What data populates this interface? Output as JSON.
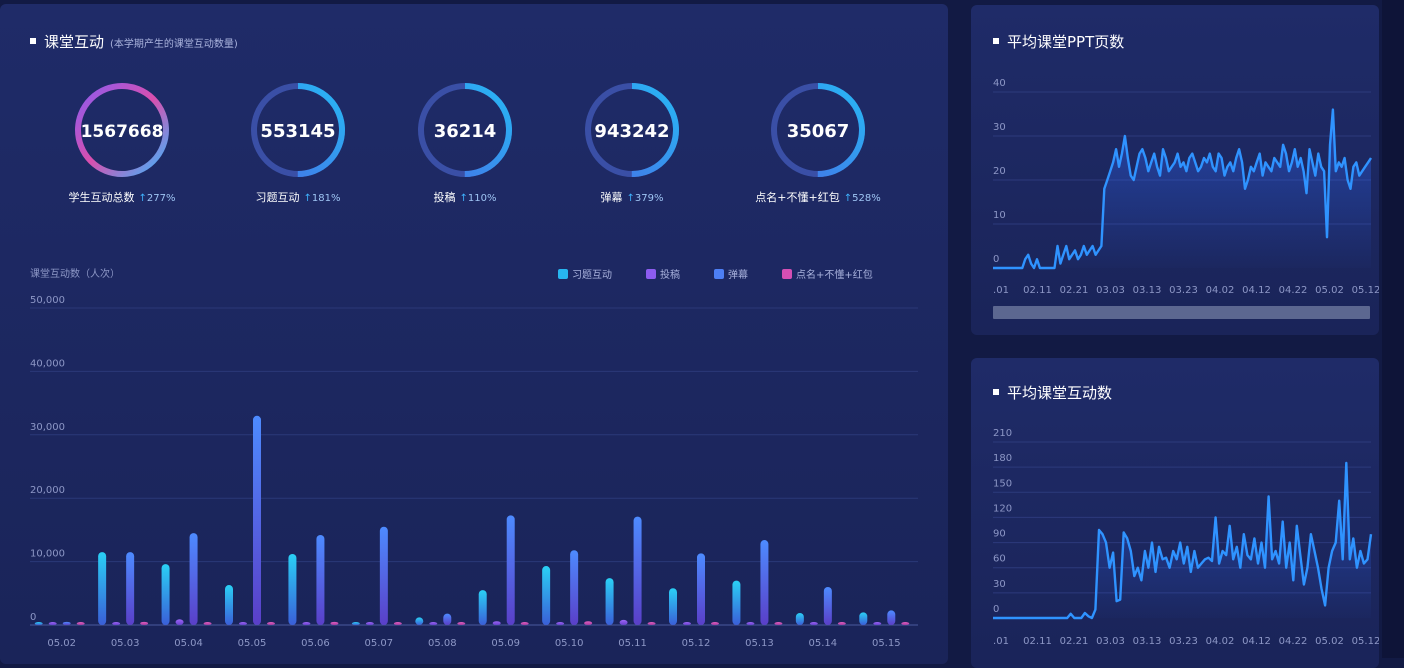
{
  "main": {
    "title": "课堂互动",
    "subtitle": "(本学期产生的课堂互动数量)",
    "kpis": [
      {
        "value": "1567668",
        "label": "学生互动总数",
        "pct": "277%"
      },
      {
        "value": "553145",
        "label": "习题互动",
        "pct": "181%"
      },
      {
        "value": "36214",
        "label": "投稿",
        "pct": "110%"
      },
      {
        "value": "943242",
        "label": "弹幕",
        "pct": "379%"
      },
      {
        "value": "35067",
        "label": "点名+不懂+红包",
        "pct": "528%"
      }
    ]
  },
  "side": {
    "ppt_title": "平均课堂PPT页数",
    "interact_title": "平均课堂互动数"
  },
  "colors": {
    "series1": "#27b6f0",
    "series2": "#8c5cf0",
    "series3": "#4d7ff5",
    "series4": "#d44fb4",
    "line": "#2f93ff"
  },
  "chart_data": [
    {
      "type": "bar",
      "title": "",
      "ylabel": "课堂互动数（人次）",
      "ylim": [
        0,
        50000
      ],
      "yticks": [
        "0",
        "10,000",
        "20,000",
        "30,000",
        "40,000",
        "50,000"
      ],
      "categories": [
        "05.02",
        "05.03",
        "05.04",
        "05.05",
        "05.06",
        "05.07",
        "05.08",
        "05.09",
        "05.10",
        "05.11",
        "05.12",
        "05.13",
        "05.14",
        "05.15"
      ],
      "legend": "top-right",
      "series": [
        {
          "name": "习题互动",
          "values": [
            200,
            11500,
            9600,
            6300,
            11200,
            400,
            1200,
            5500,
            9300,
            7400,
            5800,
            7000,
            1900,
            2000
          ]
        },
        {
          "name": "投稿",
          "values": [
            100,
            200,
            900,
            300,
            200,
            100,
            100,
            600,
            400,
            800,
            200,
            200,
            100,
            100
          ]
        },
        {
          "name": "弹幕",
          "values": [
            500,
            11500,
            14500,
            33000,
            14200,
            15500,
            1800,
            17300,
            11800,
            17100,
            11300,
            13400,
            6000,
            2300
          ]
        },
        {
          "name": "点名+不懂+红包",
          "values": [
            100,
            500,
            400,
            300,
            500,
            200,
            100,
            400,
            600,
            400,
            200,
            400,
            100,
            100
          ]
        }
      ]
    },
    {
      "type": "line",
      "title": "平均课堂PPT页数",
      "ylim": [
        0,
        40
      ],
      "yticks": [
        "0",
        "10",
        "20",
        "30",
        "40"
      ],
      "xticks": [
        ".01",
        "02.11",
        "02.21",
        "03.03",
        "03.13",
        "03.23",
        "04.02",
        "04.12",
        "04.22",
        "05.02",
        "05.12"
      ],
      "values": [
        0,
        0,
        0,
        0,
        0,
        0,
        0,
        0,
        0,
        0,
        0,
        2,
        3,
        1,
        0,
        2,
        0,
        0,
        0,
        0,
        0,
        0,
        5,
        1,
        3,
        5,
        2,
        3,
        4,
        2,
        3,
        5,
        3,
        4,
        5,
        3,
        4,
        5,
        18,
        20,
        22,
        24,
        27,
        23,
        26,
        30,
        25,
        21,
        20,
        23,
        26,
        27,
        25,
        22,
        24,
        26,
        23,
        21,
        27,
        25,
        22,
        23,
        24,
        26,
        23,
        24,
        22,
        25,
        26,
        24,
        22,
        23,
        25,
        24,
        26,
        23,
        22,
        26,
        25,
        21,
        23,
        24,
        22,
        25,
        27,
        24,
        18,
        20,
        23,
        22,
        24,
        26,
        21,
        24,
        23,
        22,
        25,
        24,
        23,
        28,
        26,
        22,
        24,
        27,
        23,
        25,
        22,
        17,
        27,
        24,
        21,
        26,
        23,
        22,
        7,
        28,
        36,
        22,
        24,
        23,
        25,
        20,
        18,
        23,
        24,
        21,
        22,
        23,
        24,
        25
      ]
    },
    {
      "type": "line",
      "title": "平均课堂互动数",
      "ylim": [
        0,
        210
      ],
      "yticks": [
        "0",
        "30",
        "60",
        "90",
        "120",
        "150",
        "180",
        "210"
      ],
      "xticks": [
        ".01",
        "02.11",
        "02.21",
        "03.03",
        "03.13",
        "03.23",
        "04.02",
        "04.12",
        "04.22",
        "05.02",
        "05.12"
      ],
      "values": [
        0,
        0,
        0,
        0,
        0,
        0,
        0,
        0,
        0,
        0,
        0,
        0,
        0,
        0,
        0,
        0,
        0,
        0,
        0,
        0,
        0,
        0,
        5,
        0,
        0,
        0,
        6,
        2,
        0,
        10,
        105,
        100,
        90,
        60,
        78,
        20,
        22,
        102,
        95,
        80,
        50,
        60,
        45,
        80,
        60,
        90,
        55,
        85,
        70,
        72,
        60,
        80,
        70,
        90,
        65,
        85,
        55,
        80,
        60,
        65,
        70,
        72,
        68,
        120,
        65,
        80,
        75,
        110,
        70,
        85,
        60,
        100,
        75,
        70,
        95,
        65,
        90,
        60,
        145,
        70,
        80,
        65,
        115,
        60,
        90,
        45,
        110,
        75,
        40,
        60,
        100,
        80,
        60,
        35,
        15,
        60,
        80,
        90,
        140,
        70,
        185,
        70,
        95,
        60,
        80,
        65,
        70,
        100
      ]
    }
  ]
}
